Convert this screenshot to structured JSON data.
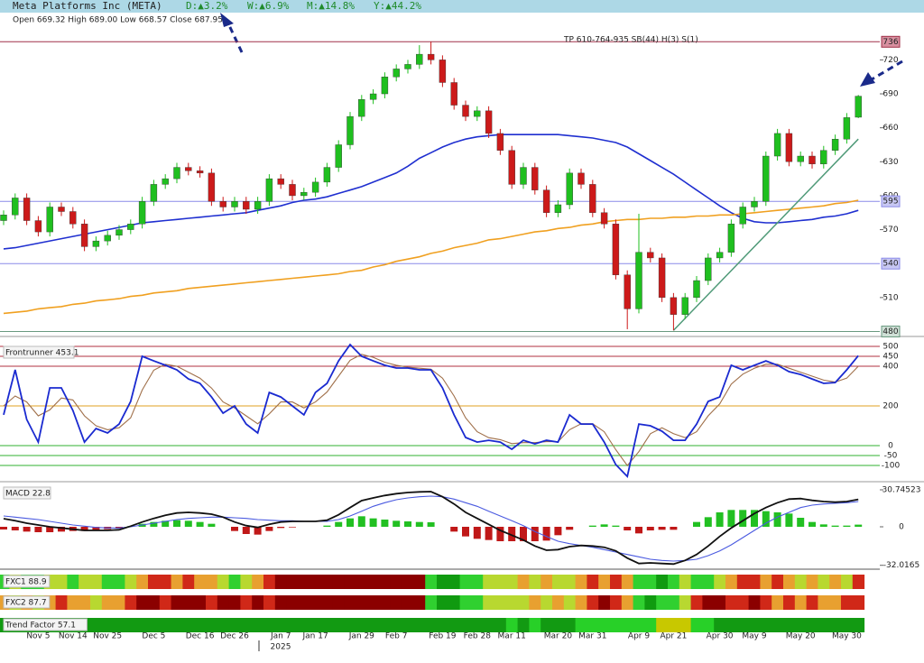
{
  "chart_data": [
    {
      "type": "candlestick",
      "title": "Meta Platforms Inc (META)",
      "changes": [
        "D:▲3.2%",
        "W:▲6.9%",
        "M:▲14.8%",
        "Y:▲44.2%"
      ],
      "subtitle": "Open 669.32 High 689.00 Low 668.57 Close 687.95",
      "annotation": "TP 610-764-935 SB(44) H(3) S(1)",
      "year_label": "2025",
      "categories": [
        null,
        null,
        null,
        "Nov 5",
        null,
        null,
        "Nov 14",
        null,
        null,
        "Nov 25",
        null,
        null,
        null,
        "Dec 5",
        null,
        null,
        null,
        "Dec 16",
        null,
        null,
        "Dec 26",
        null,
        null,
        null,
        "Jan 7",
        null,
        null,
        "Jan 17",
        null,
        null,
        null,
        "Jan 29",
        null,
        null,
        "Feb 7",
        null,
        null,
        null,
        "Feb 19",
        null,
        null,
        "Feb 28",
        null,
        null,
        "Mar 11",
        null,
        null,
        null,
        "Mar 20",
        null,
        null,
        "Mar 31",
        null,
        null,
        null,
        "Apr 9",
        null,
        null,
        "Apr 21",
        null,
        null,
        null,
        "Apr 30",
        null,
        null,
        "May 9",
        null,
        null,
        null,
        "May 20",
        null,
        null,
        null,
        "May 30",
        null
      ],
      "open": [
        578,
        583,
        598,
        578,
        568,
        590,
        586,
        575,
        555,
        560,
        565,
        570,
        575,
        595,
        610,
        615,
        625,
        622,
        620,
        595,
        590,
        595,
        588,
        595,
        615,
        610,
        600,
        603,
        612,
        625,
        645,
        670,
        685,
        690,
        705,
        712,
        716,
        725,
        720,
        700,
        680,
        670,
        675,
        655,
        640,
        610,
        625,
        605,
        585,
        592,
        620,
        610,
        585,
        575,
        530,
        500,
        550,
        545,
        510,
        495,
        510,
        525,
        545,
        550,
        575,
        590,
        595,
        635,
        655,
        630,
        635,
        628,
        640,
        650,
        669.32
      ],
      "high": [
        587,
        602,
        602,
        582,
        594,
        594,
        590,
        579,
        564,
        569,
        574,
        579,
        599,
        614,
        619,
        629,
        629,
        626,
        624,
        599,
        599,
        599,
        599,
        619,
        619,
        614,
        607,
        616,
        629,
        649,
        674,
        689,
        694,
        709,
        716,
        720,
        733,
        736,
        724,
        704,
        684,
        679,
        679,
        659,
        644,
        629,
        629,
        609,
        596,
        624,
        624,
        614,
        589,
        579,
        534,
        584,
        554,
        549,
        514,
        514,
        529,
        549,
        554,
        579,
        594,
        599,
        639,
        659,
        659,
        639,
        639,
        644,
        654,
        673,
        689
      ],
      "low": [
        574,
        579,
        574,
        564,
        564,
        582,
        571,
        551,
        551,
        556,
        561,
        566,
        571,
        591,
        606,
        611,
        618,
        616,
        591,
        586,
        586,
        584,
        584,
        591,
        606,
        596,
        596,
        599,
        608,
        621,
        641,
        666,
        681,
        686,
        701,
        708,
        712,
        716,
        696,
        676,
        666,
        666,
        651,
        636,
        606,
        606,
        601,
        581,
        581,
        588,
        606,
        581,
        571,
        526,
        482,
        496,
        541,
        506,
        481,
        491,
        506,
        521,
        541,
        546,
        571,
        586,
        591,
        631,
        626,
        626,
        624,
        624,
        636,
        646,
        668.57
      ],
      "close": [
        583,
        598,
        578,
        568,
        590,
        586,
        575,
        555,
        560,
        565,
        570,
        575,
        595,
        610,
        615,
        625,
        622,
        620,
        595,
        590,
        595,
        588,
        595,
        615,
        610,
        600,
        603,
        612,
        625,
        645,
        670,
        685,
        690,
        705,
        712,
        716,
        725,
        720,
        700,
        680,
        670,
        675,
        655,
        640,
        610,
        625,
        605,
        585,
        592,
        620,
        610,
        585,
        575,
        530,
        500,
        550,
        545,
        510,
        495,
        510,
        525,
        545,
        550,
        575,
        590,
        595,
        635,
        655,
        630,
        635,
        628,
        640,
        650,
        669,
        687.95
      ],
      "up_color": "#1fbf1f",
      "down_color": "#cc1a1a",
      "overlays": [
        {
          "color": "#1f2fd0",
          "values": [
            553,
            554,
            556,
            558,
            560,
            562,
            564,
            566,
            568,
            570,
            572,
            574,
            576,
            577,
            578,
            579,
            580,
            581,
            582,
            583,
            584,
            585,
            587,
            589,
            591,
            594,
            596,
            597,
            599,
            602,
            605,
            608,
            612,
            616,
            620,
            626,
            633,
            638,
            643,
            647,
            650,
            652,
            653,
            654,
            654,
            654,
            654,
            654,
            654,
            653,
            652,
            651,
            649,
            647,
            643,
            637,
            631,
            625,
            619,
            612,
            605,
            598,
            591,
            585,
            580,
            577,
            576,
            576,
            577,
            578,
            579,
            581,
            582,
            584,
            587
          ]
        },
        {
          "color": "#f0a020",
          "values": [
            496,
            497,
            498,
            500,
            501,
            502,
            504,
            505,
            507,
            508,
            509,
            511,
            512,
            514,
            515,
            516,
            518,
            519,
            520,
            521,
            522,
            523,
            524,
            525,
            526,
            527,
            528,
            529,
            530,
            531,
            533,
            534,
            537,
            539,
            542,
            544,
            546,
            549,
            551,
            554,
            556,
            558,
            561,
            562,
            564,
            566,
            568,
            569,
            571,
            572,
            574,
            575,
            577,
            578,
            579,
            579,
            580,
            580,
            581,
            581,
            582,
            582,
            583,
            583,
            584,
            585,
            586,
            587,
            588,
            589,
            590,
            591,
            593,
            594,
            596
          ]
        }
      ],
      "levels": [
        {
          "value": 736,
          "color": "#a03048",
          "box_color": "#d890a0"
        },
        {
          "value": 595,
          "color": "#8a8ae8",
          "box_color": "#c8c8f4"
        },
        {
          "value": 540,
          "color": "#8a8ae8",
          "box_color": "#c8c8f4"
        },
        {
          "value": 480,
          "color": "#6a9a80",
          "box_color": "#cfe0d6"
        }
      ],
      "trendline": {
        "x": [
          58,
          74
        ],
        "y": [
          481,
          650
        ],
        "color": "#4f9a78"
      },
      "ylim": [
        478,
        749
      ],
      "yticks": [
        510,
        570,
        600,
        630,
        660,
        690,
        720
      ]
    },
    {
      "type": "oscillator",
      "title": "Frontrunner 453.1",
      "series": [
        {
          "color": "#1a2ad0",
          "values": [
            155,
            382,
            132,
            18,
            291,
            291,
            177,
            18,
            86,
            64,
            109,
            223,
            450,
            427,
            405,
            382,
            336,
            314,
            245,
            164,
            200,
            109,
            64,
            268,
            245,
            200,
            155,
            268,
            314,
            427,
            509,
            450,
            427,
            405,
            391,
            391,
            382,
            382,
            291,
            155,
            41,
            18,
            27,
            18,
            -18,
            27,
            9,
            27,
            18,
            155,
            109,
            109,
            18,
            -95,
            -155,
            109,
            100,
            73,
            27,
            27,
            109,
            223,
            245,
            405,
            382,
            405,
            427,
            405,
            373,
            359,
            336,
            314,
            318,
            382,
            453.1
          ]
        },
        {
          "color": "#a0704a",
          "values": [
            200,
            250,
            220,
            150,
            180,
            240,
            230,
            150,
            100,
            80,
            90,
            140,
            280,
            380,
            410,
            400,
            370,
            340,
            290,
            220,
            190,
            150,
            110,
            160,
            220,
            220,
            190,
            220,
            270,
            350,
            430,
            460,
            445,
            420,
            405,
            395,
            390,
            385,
            340,
            250,
            140,
            70,
            40,
            30,
            10,
            15,
            15,
            20,
            20,
            80,
            110,
            110,
            70,
            -20,
            -100,
            -30,
            60,
            90,
            60,
            40,
            70,
            150,
            210,
            310,
            360,
            390,
            410,
            410,
            390,
            370,
            350,
            330,
            320,
            340,
            400
          ]
        }
      ],
      "ylim": [
        -177,
        541
      ],
      "yticks": [
        500,
        450,
        400,
        200,
        0,
        -50,
        -100
      ],
      "tick_colors": [
        "#b03040",
        "#b03040",
        "#b03040",
        "#e0a020",
        "#30b030",
        "#30b030",
        "#30b030"
      ]
    },
    {
      "type": "macd",
      "title": "MACD 22.8",
      "series": [
        {
          "color": "#111111",
          "values": [
            6.75,
            5,
            3,
            1.5,
            0,
            -1,
            -2,
            -3,
            -3,
            -3,
            -2.5,
            0.5,
            4,
            7,
            9.5,
            11.5,
            12,
            11.5,
            10.5,
            8,
            4,
            1,
            -0.5,
            2,
            4,
            4.5,
            4.5,
            4.5,
            5.5,
            10,
            16,
            21.75,
            24,
            26,
            27.5,
            28.5,
            29,
            29.25,
            25,
            19,
            12,
            7,
            2,
            -3,
            -7,
            -11,
            -16,
            -19.5,
            -19,
            -16.5,
            -15.5,
            -16,
            -17,
            -20,
            -26,
            -30.5,
            -30,
            -30.5,
            -31,
            -28,
            -23,
            -16,
            -8,
            -1,
            5,
            11,
            16,
            20,
            23,
            23.5,
            22,
            21,
            20.5,
            21,
            22.8
          ]
        },
        {
          "color": "#4a5ae0",
          "values": [
            9,
            8,
            7,
            6,
            4.5,
            3,
            1.5,
            0.5,
            -0.5,
            -1,
            -1,
            0,
            1.5,
            3,
            4.5,
            6,
            7,
            7.5,
            8,
            8,
            7.5,
            7,
            6,
            5.5,
            5,
            5,
            4.5,
            4.5,
            4.5,
            6,
            9,
            13,
            17,
            20,
            22.5,
            24,
            25,
            25.5,
            25,
            23,
            20,
            17,
            13,
            9,
            5,
            1,
            -4,
            -8,
            -12,
            -14,
            -15.5,
            -17,
            -19,
            -21,
            -23,
            -25,
            -27,
            -28,
            -28.5,
            -28,
            -27,
            -24,
            -20,
            -15,
            -9,
            -3,
            3,
            8,
            12,
            16,
            18,
            19,
            19.5,
            20,
            21
          ]
        }
      ],
      "histogram": {
        "up_color": "#22c022",
        "down_color": "#c01818",
        "values": [
          -2.25,
          -3,
          -4,
          -4.5,
          -4.5,
          -4,
          -3.5,
          -3.5,
          -2.5,
          -2,
          -1.5,
          0.5,
          2.5,
          4,
          5,
          5.5,
          5,
          4,
          2.5,
          0,
          -3.5,
          -6,
          -6.5,
          -3.5,
          -1,
          -0.5,
          0,
          0,
          1,
          4,
          7,
          8.75,
          7,
          6,
          5,
          4.5,
          4,
          3.75,
          0,
          -4,
          -8,
          -10,
          -11,
          -12,
          -12,
          -12,
          -12,
          -11.5,
          -7,
          -2.5,
          0,
          1,
          2,
          1,
          -3,
          -5.5,
          -3,
          -2.5,
          -2.5,
          0,
          4,
          8,
          12,
          14,
          14,
          14,
          13,
          12,
          11,
          7.5,
          4,
          2,
          1,
          1,
          1.8
        ]
      },
      "ylim": [
        -36,
        36.75
      ],
      "yticks": [
        30.74523,
        0,
        -32.0165
      ]
    },
    {
      "type": "heatstrip",
      "title": "FXC1 88.9",
      "palette": [
        "#8b0000",
        "#d02818",
        "#e8a030",
        "#b8d830",
        "#30d030",
        "#109a10"
      ],
      "levels": [
        4,
        3,
        4,
        4,
        3,
        3,
        4,
        3,
        3,
        4,
        4,
        3,
        2,
        1,
        1,
        2,
        1,
        2,
        2,
        3,
        4,
        3,
        2,
        1,
        0,
        0,
        0,
        0,
        0,
        0,
        0,
        0,
        0,
        0,
        0,
        0,
        0,
        4,
        5,
        5,
        4,
        4,
        3,
        3,
        3,
        2,
        3,
        2,
        3,
        3,
        2,
        1,
        2,
        1,
        2,
        4,
        4,
        5,
        4,
        3,
        4,
        4,
        3,
        2,
        1,
        1,
        2,
        1,
        2,
        3,
        2,
        3,
        2,
        3,
        1
      ]
    },
    {
      "type": "heatstrip",
      "title": "FXC2 87.7",
      "palette": [
        "#8b0000",
        "#d02818",
        "#e8a030",
        "#b8d830",
        "#30d030",
        "#109a10"
      ],
      "levels": [
        2,
        3,
        2,
        3,
        2,
        1,
        2,
        2,
        3,
        2,
        2,
        1,
        0,
        0,
        1,
        0,
        0,
        0,
        1,
        0,
        0,
        1,
        0,
        1,
        0,
        0,
        0,
        0,
        0,
        0,
        0,
        0,
        0,
        0,
        0,
        0,
        0,
        4,
        5,
        5,
        4,
        4,
        3,
        3,
        3,
        3,
        2,
        3,
        2,
        3,
        2,
        1,
        0,
        1,
        2,
        4,
        5,
        4,
        4,
        3,
        1,
        0,
        0,
        1,
        1,
        0,
        1,
        2,
        1,
        2,
        1,
        2,
        2,
        1,
        1
      ]
    },
    {
      "type": "heatstrip",
      "title": "Trend Factor 57.1",
      "palette": [
        "#129a12",
        "#28d028",
        "#c8c800"
      ],
      "levels": [
        0,
        0,
        0,
        0,
        0,
        0,
        0,
        0,
        0,
        0,
        0,
        0,
        0,
        0,
        0,
        0,
        0,
        0,
        0,
        0,
        0,
        0,
        0,
        0,
        0,
        0,
        0,
        0,
        0,
        0,
        0,
        0,
        0,
        0,
        0,
        0,
        0,
        0,
        0,
        0,
        0,
        0,
        0,
        0,
        1,
        0,
        1,
        0,
        0,
        0,
        1,
        1,
        1,
        1,
        1,
        1,
        1,
        2,
        2,
        2,
        1,
        1,
        0,
        0,
        0,
        0,
        0,
        0,
        0,
        0,
        0,
        0,
        0,
        0,
        0
      ]
    }
  ]
}
